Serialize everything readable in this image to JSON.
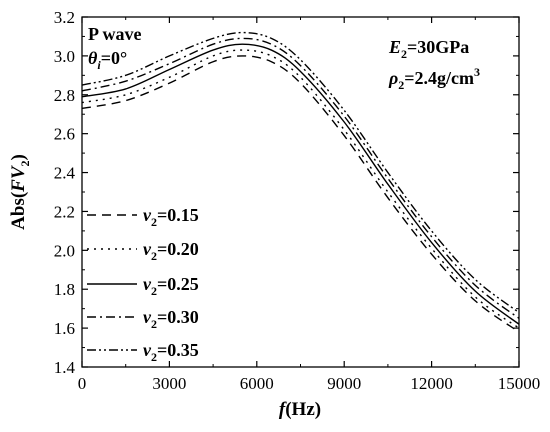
{
  "chart_data": {
    "type": "line",
    "xlabel": {
      "prefix": "f",
      "unit": "(Hz)"
    },
    "ylabel": {
      "pre": "Abs(",
      "italic": "FV",
      "sub": "2",
      "post": ")"
    },
    "xlim": [
      0,
      15000
    ],
    "ylim": [
      1.4,
      3.2
    ],
    "x_ticks": [
      "0",
      "3000",
      "6000",
      "9000",
      "12000",
      "15000"
    ],
    "y_ticks": [
      "1.4",
      "1.6",
      "1.8",
      "2.0",
      "2.2",
      "2.4",
      "2.6",
      "2.8",
      "3.0",
      "3.2"
    ],
    "grid": false,
    "legend_position": "left-middle",
    "annotations": {
      "wave": "P wave",
      "theta_symbol": "θ",
      "theta_sub": "i",
      "theta_value": "=0°",
      "e_symbol": "E",
      "e_sub": "2",
      "e_value": "=30GPa",
      "rho_symbol": "ρ",
      "rho_sub": "2",
      "rho_value": "=2.4g/cm",
      "rho_sup": "3"
    },
    "x": [
      0,
      1500,
      3000,
      4500,
      5500,
      6500,
      7500,
      9000,
      10500,
      12000,
      13500,
      15000
    ],
    "series": [
      {
        "symbol": "ν",
        "sub": "2",
        "value": "=0.15",
        "dash": "9,6",
        "values": [
          2.73,
          2.77,
          2.86,
          2.97,
          3.0,
          2.97,
          2.86,
          2.59,
          2.27,
          1.98,
          1.74,
          1.58
        ]
      },
      {
        "symbol": "ν",
        "sub": "2",
        "value": "=0.20",
        "dash": "2,5",
        "values": [
          2.76,
          2.8,
          2.89,
          3.0,
          3.03,
          3.0,
          2.89,
          2.62,
          2.3,
          2.01,
          1.76,
          1.6
        ]
      },
      {
        "symbol": "ν",
        "sub": "2",
        "value": "=0.25",
        "dash": "",
        "values": [
          2.79,
          2.83,
          2.93,
          3.03,
          3.06,
          3.03,
          2.92,
          2.66,
          2.34,
          2.04,
          1.79,
          1.62
        ]
      },
      {
        "symbol": "ν",
        "sub": "2",
        "value": "=0.30",
        "dash": "9,4,2,4",
        "values": [
          2.82,
          2.87,
          2.96,
          3.06,
          3.09,
          3.06,
          2.95,
          2.69,
          2.37,
          2.07,
          1.82,
          1.65
        ]
      },
      {
        "symbol": "ν",
        "sub": "2",
        "value": "=0.35",
        "dash": "9,3,2,3,2,3",
        "values": [
          2.85,
          2.9,
          3.0,
          3.09,
          3.12,
          3.09,
          2.98,
          2.72,
          2.4,
          2.1,
          1.85,
          1.68
        ]
      }
    ]
  }
}
